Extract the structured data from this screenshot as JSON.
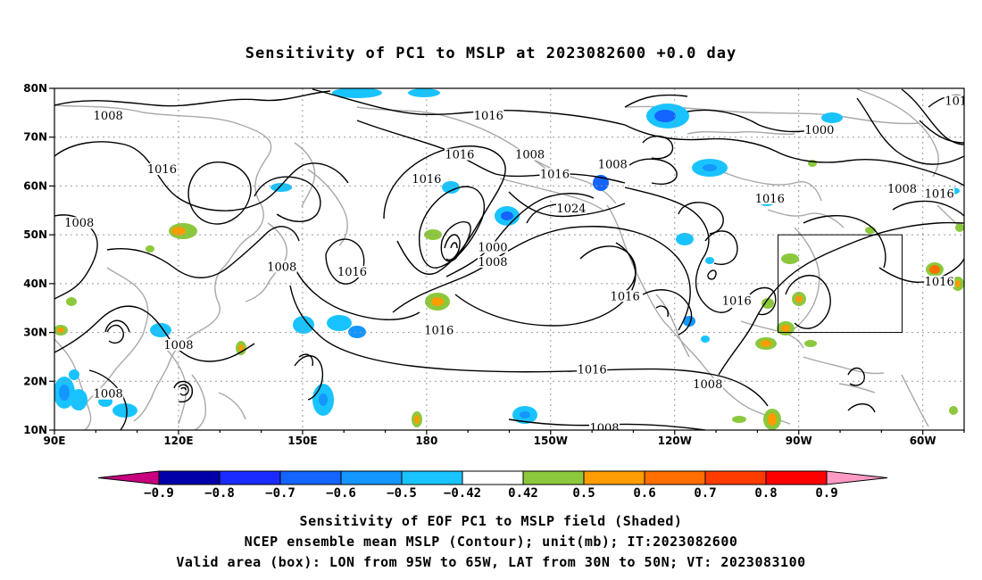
{
  "title": "Sensitivity of PC1 to MSLP at 2023082600 +0.0 day",
  "map": {
    "lon_ticks": [
      "90E",
      "120E",
      "150E",
      "180",
      "150W",
      "120W",
      "90W",
      "60W"
    ],
    "lat_ticks": [
      "80N",
      "70N",
      "60N",
      "50N",
      "40N",
      "30N",
      "20N",
      "10N"
    ],
    "lon_range_deg": [
      90,
      310
    ],
    "lat_range_deg": [
      10,
      80
    ],
    "box": {
      "lon_min": -95,
      "lon_max": -65,
      "lat_min": 30,
      "lat_max": 50
    },
    "contour_labels": [
      {
        "text": "1008",
        "lon": 103,
        "lat": 74
      },
      {
        "text": "1016",
        "lon": 116,
        "lat": 63
      },
      {
        "text": "1008",
        "lon": 96,
        "lat": 52
      },
      {
        "text": "1008",
        "lon": 145,
        "lat": 43
      },
      {
        "text": "1016",
        "lon": 162,
        "lat": 42
      },
      {
        "text": "1008",
        "lon": 120,
        "lat": 27
      },
      {
        "text": "1008",
        "lon": 103,
        "lat": 17
      },
      {
        "text": "1016",
        "lon": -165,
        "lat": 74
      },
      {
        "text": "1016",
        "lon": -172,
        "lat": 66
      },
      {
        "text": "1008",
        "lon": -155,
        "lat": 66
      },
      {
        "text": "1016",
        "lon": -180,
        "lat": 61
      },
      {
        "text": "1016",
        "lon": -149,
        "lat": 62
      },
      {
        "text": "1024",
        "lon": -145,
        "lat": 55
      },
      {
        "text": "1008",
        "lon": -135,
        "lat": 64
      },
      {
        "text": "1000",
        "lon": -164,
        "lat": 47
      },
      {
        "text": "1008",
        "lon": -164,
        "lat": 44
      },
      {
        "text": "1016",
        "lon": -177,
        "lat": 30
      },
      {
        "text": "1016",
        "lon": -132,
        "lat": 37
      },
      {
        "text": "1016",
        "lon": -140,
        "lat": 22
      },
      {
        "text": "1016",
        "lon": -105,
        "lat": 36
      },
      {
        "text": "1008",
        "lon": -112,
        "lat": 19
      },
      {
        "text": "1008",
        "lon": -137,
        "lat": 10
      },
      {
        "text": "1000",
        "lon": -85,
        "lat": 71
      },
      {
        "text": "1016",
        "lon": -97,
        "lat": 57
      },
      {
        "text": "1008",
        "lon": -65,
        "lat": 59
      },
      {
        "text": "1016",
        "lon": -56,
        "lat": 58
      },
      {
        "text": "1016",
        "lon": -56,
        "lat": 40
      },
      {
        "text": "101",
        "lon": -52,
        "lat": 77
      }
    ]
  },
  "colorbar": {
    "labels": [
      "−0.9",
      "−0.8",
      "−0.7",
      "−0.6",
      "−0.5",
      "−0.42",
      "0.42",
      "0.5",
      "0.6",
      "0.7",
      "0.8",
      "0.9"
    ],
    "colors": [
      "#c8007f",
      "#0000aa",
      "#1a2bff",
      "#1464ff",
      "#1496ff",
      "#19c3ff",
      "#ffffff",
      "#8cc83c",
      "#ff9c00",
      "#ff6e00",
      "#ff3c00",
      "#ff0000",
      "#ff9ac4"
    ]
  },
  "captions": [
    "Sensitivity of EOF PC1 to MSLP field (Shaded)",
    "NCEP ensemble mean MSLP (Contour); unit(mb); IT:2023082600",
    "Valid area (box): LON from 95W to 65W, LAT from 30N to 50N; VT: 2023083100"
  ]
}
